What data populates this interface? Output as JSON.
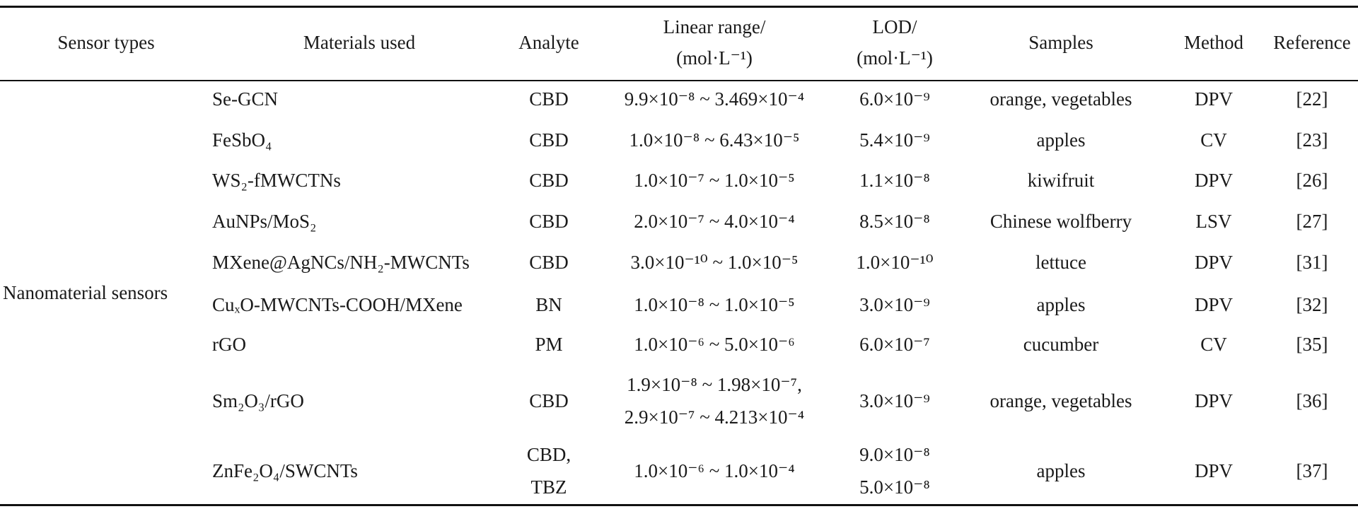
{
  "headers": {
    "sensor_types": "Sensor types",
    "materials": "Materials used",
    "analyte": "Analyte",
    "linear_range": [
      "Linear range/",
      "(mol·L⁻¹)"
    ],
    "lod": [
      "LOD/",
      "(mol·L⁻¹)"
    ],
    "samples": "Samples",
    "method": "Method",
    "reference": "Reference"
  },
  "group_label": "Nanomaterial sensors",
  "rows": [
    {
      "material": "Se-GCN",
      "analyte": "CBD",
      "range": "9.9×10⁻⁸ ~ 3.469×10⁻⁴",
      "lod": "6.0×10⁻⁹",
      "samples": "orange, vegetables",
      "method": "DPV",
      "ref": "[22]"
    },
    {
      "material": "FeSbO₄",
      "analyte": "CBD",
      "range": "1.0×10⁻⁸ ~ 6.43×10⁻⁵",
      "lod": "5.4×10⁻⁹",
      "samples": "apples",
      "method": "CV",
      "ref": "[23]"
    },
    {
      "material": "WS₂-fMWCTNs",
      "analyte": "CBD",
      "range": "1.0×10⁻⁷ ~ 1.0×10⁻⁵",
      "lod": "1.1×10⁻⁸",
      "samples": "kiwifruit",
      "method": "DPV",
      "ref": "[26]"
    },
    {
      "material": "AuNPs/MoS₂",
      "analyte": "CBD",
      "range": "2.0×10⁻⁷ ~ 4.0×10⁻⁴",
      "lod": "8.5×10⁻⁸",
      "samples": "Chinese wolfberry",
      "method": "LSV",
      "ref": "[27]"
    },
    {
      "material": "MXene@AgNCs/NH₂-MWCNTs",
      "analyte": "CBD",
      "range": "3.0×10⁻¹⁰ ~ 1.0×10⁻⁵",
      "lod": "1.0×10⁻¹⁰",
      "samples": "lettuce",
      "method": "DPV",
      "ref": "[31]"
    },
    {
      "material": "CuₓO-MWCNTs-COOH/MXene",
      "analyte": "BN",
      "range": "1.0×10⁻⁸ ~ 1.0×10⁻⁵",
      "lod": "3.0×10⁻⁹",
      "samples": "apples",
      "method": "DPV",
      "ref": "[32]"
    },
    {
      "material": "rGO",
      "analyte": "PM",
      "range": "1.0×10⁻⁶ ~ 5.0×10⁻⁶",
      "lod": "6.0×10⁻⁷",
      "samples": "cucumber",
      "method": "CV",
      "ref": "[35]"
    },
    {
      "material": "Sm₂O₃/rGO",
      "analyte": "CBD",
      "range": [
        "1.9×10⁻⁸ ~ 1.98×10⁻⁷,",
        "2.9×10⁻⁷ ~ 4.213×10⁻⁴"
      ],
      "lod": "3.0×10⁻⁹",
      "samples": "orange, vegetables",
      "method": "DPV",
      "ref": "[36]"
    },
    {
      "material": "ZnFe₂O₄/SWCNTs",
      "analyte": [
        "CBD,",
        "TBZ"
      ],
      "range": "1.0×10⁻⁶ ~ 1.0×10⁻⁴",
      "lod": [
        "9.0×10⁻⁸",
        "5.0×10⁻⁸"
      ],
      "samples": "apples",
      "method": "DPV",
      "ref": "[37]"
    }
  ]
}
